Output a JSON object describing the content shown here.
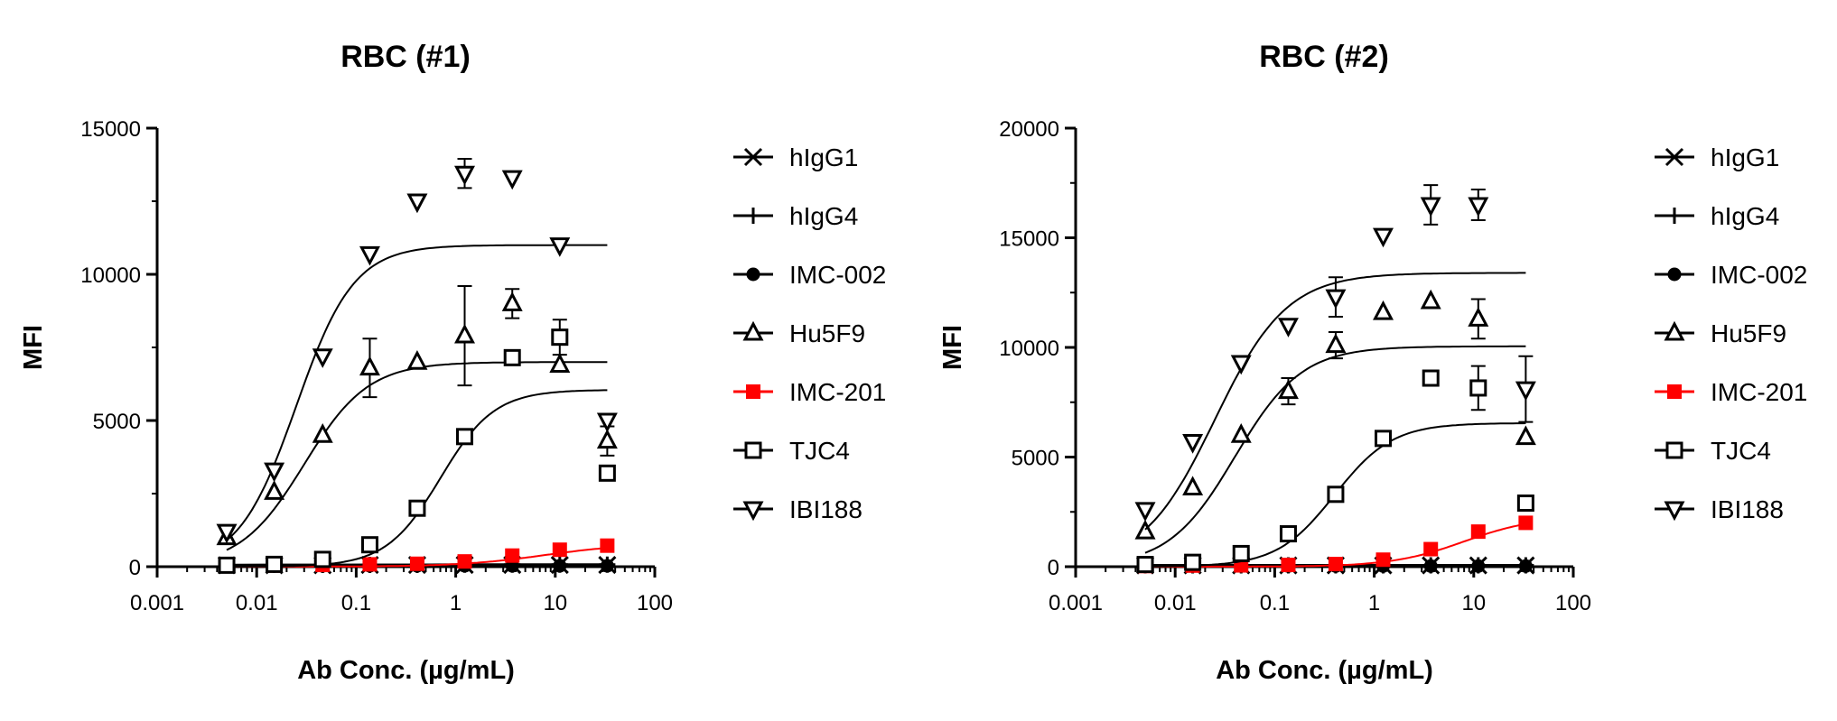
{
  "chart_data": [
    {
      "type": "scatter",
      "title": "RBC (#1)",
      "xlabel": "Ab Conc. (µg/mL)",
      "ylabel": "MFI",
      "xscale": "log",
      "xlim": [
        0.001,
        100
      ],
      "ylim": [
        0,
        15000
      ],
      "xticks": [
        "0.001",
        "0.01",
        "0.1",
        "1",
        "10",
        "100"
      ],
      "yticks": [
        "0",
        "5000",
        "10000",
        "15000"
      ],
      "legend_position": "right",
      "x": [
        0.005,
        0.015,
        0.046,
        0.137,
        0.41,
        1.23,
        3.7,
        11.1,
        33.3
      ],
      "series": [
        {
          "name": "hIgG1",
          "marker": "x",
          "color": "#000000",
          "values": [
            50,
            50,
            50,
            60,
            60,
            60,
            60,
            60,
            60
          ],
          "fit": null
        },
        {
          "name": "hIgG4",
          "marker": "plus",
          "color": "#000000",
          "values": [
            50,
            60,
            60,
            60,
            60,
            70,
            70,
            70,
            70
          ],
          "fit": null
        },
        {
          "name": "IMC-002",
          "marker": "circle",
          "color": "#000000",
          "values": [
            30,
            30,
            30,
            30,
            30,
            30,
            30,
            30,
            30
          ],
          "fit": null
        },
        {
          "name": "Hu5F9",
          "marker": "triangle-up",
          "color": "#000000",
          "values": [
            1000,
            2550,
            4500,
            6800,
            7000,
            7900,
            9000,
            6900,
            4300
          ],
          "errors": [
            0,
            0,
            0,
            1000,
            0,
            1700,
            500,
            0,
            500
          ],
          "fit": {
            "bottom": 0,
            "top": 7000,
            "ec50": 0.03,
            "hill": 1.35
          }
        },
        {
          "name": "IMC-201",
          "marker": "square-filled",
          "color": "#ff0000",
          "values": [
            20,
            40,
            60,
            80,
            100,
            180,
            380,
            580,
            720
          ],
          "fit": {
            "bottom": 0,
            "top": 800,
            "ec50": 8,
            "hill": 1.0
          }
        },
        {
          "name": "TJC4",
          "marker": "square-open",
          "color": "#000000",
          "values": [
            50,
            80,
            250,
            750,
            2000,
            4450,
            7150,
            7850,
            3200
          ],
          "errors": [
            0,
            0,
            0,
            0,
            0,
            0,
            0,
            600,
            0
          ],
          "fit": {
            "bottom": 0,
            "top": 6050,
            "ec50": 0.7,
            "hill": 1.6
          }
        },
        {
          "name": "IBI188",
          "marker": "triangle-down",
          "color": "#000000",
          "values": [
            1200,
            3300,
            7200,
            10700,
            12500,
            13450,
            13300,
            11000,
            5000
          ],
          "errors": [
            0,
            0,
            0,
            0,
            0,
            500,
            0,
            0,
            0
          ],
          "fit": {
            "bottom": 0,
            "top": 11000,
            "ec50": 0.025,
            "hill": 1.5
          }
        }
      ]
    },
    {
      "type": "scatter",
      "title": "RBC (#2)",
      "xlabel": "Ab Conc. (µg/mL)",
      "ylabel": "MFI",
      "xscale": "log",
      "xlim": [
        0.001,
        100
      ],
      "ylim": [
        0,
        20000
      ],
      "xticks": [
        "0.001",
        "0.01",
        "0.1",
        "1",
        "10",
        "100"
      ],
      "yticks": [
        "0",
        "5000",
        "10000",
        "15000",
        "20000"
      ],
      "legend_position": "right",
      "x": [
        0.005,
        0.015,
        0.046,
        0.137,
        0.41,
        1.23,
        3.7,
        11.1,
        33.3
      ],
      "series": [
        {
          "name": "hIgG1",
          "marker": "x",
          "color": "#000000",
          "values": [
            60,
            60,
            60,
            60,
            60,
            60,
            60,
            60,
            60
          ],
          "fit": null
        },
        {
          "name": "hIgG4",
          "marker": "plus",
          "color": "#000000",
          "values": [
            60,
            60,
            60,
            60,
            60,
            60,
            60,
            60,
            60
          ],
          "fit": null
        },
        {
          "name": "IMC-002",
          "marker": "circle",
          "color": "#000000",
          "values": [
            30,
            30,
            30,
            30,
            30,
            30,
            30,
            30,
            30
          ],
          "fit": null
        },
        {
          "name": "Hu5F9",
          "marker": "triangle-up",
          "color": "#000000",
          "values": [
            1600,
            3600,
            6000,
            8000,
            10100,
            11600,
            12100,
            11300,
            5900
          ],
          "errors": [
            0,
            0,
            0,
            600,
            600,
            0,
            0,
            900,
            0
          ],
          "fit": {
            "bottom": 0,
            "top": 10050,
            "ec50": 0.04,
            "hill": 1.3
          }
        },
        {
          "name": "IMC-201",
          "marker": "square-filled",
          "color": "#ff0000",
          "values": [
            30,
            50,
            60,
            80,
            120,
            320,
            800,
            1600,
            2000
          ],
          "fit": {
            "bottom": 0,
            "top": 2300,
            "ec50": 8,
            "hill": 1.2
          }
        },
        {
          "name": "TJC4",
          "marker": "square-open",
          "color": "#000000",
          "values": [
            100,
            200,
            600,
            1500,
            3300,
            5850,
            8600,
            8150,
            2900
          ],
          "errors": [
            0,
            0,
            0,
            0,
            0,
            0,
            0,
            1000,
            0
          ],
          "fit": {
            "bottom": 0,
            "top": 6550,
            "ec50": 0.4,
            "hill": 1.5
          }
        },
        {
          "name": "IBI188",
          "marker": "triangle-down",
          "color": "#000000",
          "values": [
            2600,
            5700,
            9300,
            11000,
            12300,
            15100,
            16500,
            16500,
            8100
          ],
          "errors": [
            0,
            0,
            0,
            0,
            900,
            0,
            900,
            700,
            1500
          ],
          "fit": {
            "bottom": 0,
            "top": 13400,
            "ec50": 0.025,
            "hill": 1.2
          }
        }
      ]
    }
  ]
}
